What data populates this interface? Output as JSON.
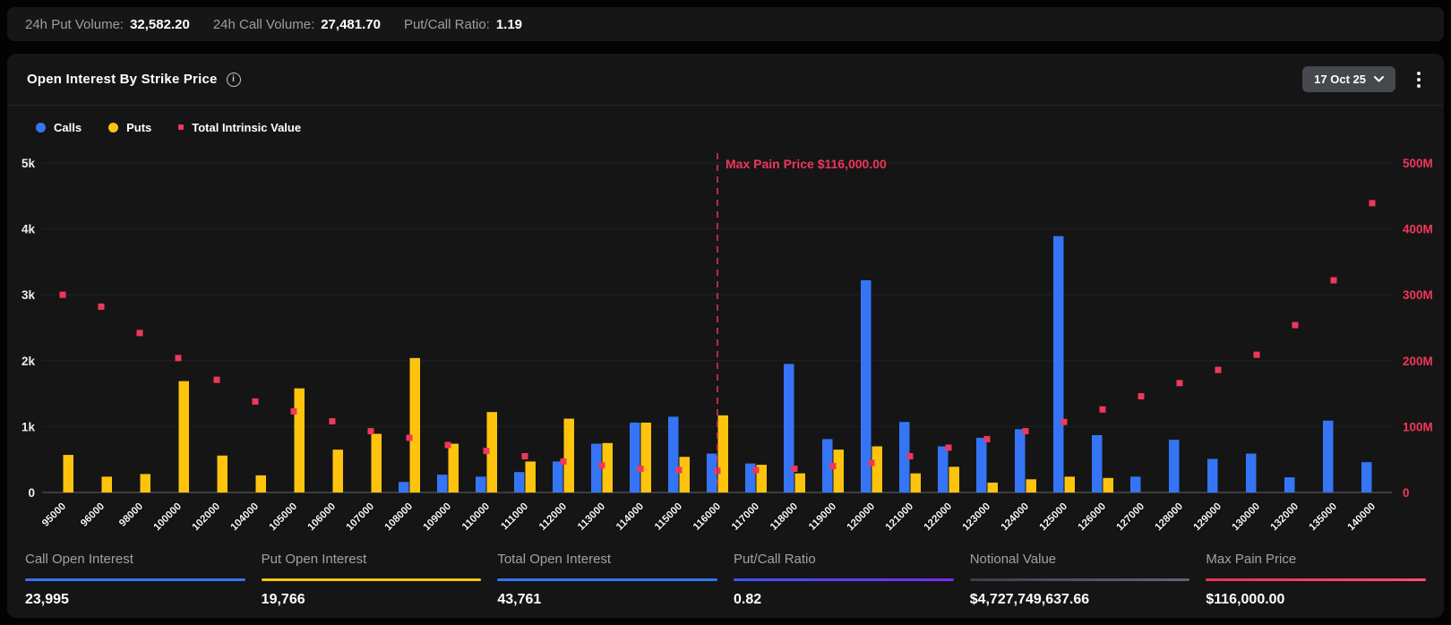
{
  "colors": {
    "calls_blue": "#3575F5",
    "puts_yellow": "#FEC40D",
    "intrinsic_red": "#F0375C",
    "max_pain_line": "#C92D52",
    "max_pain_label": "#F0355C",
    "grid_line": "#212121",
    "axis_line": "#3c3c3c",
    "left_tick": "#ececec",
    "right_tick": "#F0375C",
    "x_tick": "#f5f5f5"
  },
  "top_bar": {
    "items": [
      {
        "label": "24h Put Volume:",
        "value": "32,582.20"
      },
      {
        "label": "24h Call Volume:",
        "value": "27,481.70"
      },
      {
        "label": "Put/Call Ratio:",
        "value": "1.19"
      }
    ]
  },
  "panel": {
    "title": "Open Interest By Strike Price",
    "info_glyph": "i",
    "date_selector": "17 Oct 25"
  },
  "legend": {
    "items": [
      {
        "label": "Calls",
        "shape": "circle",
        "color": "#3575F5"
      },
      {
        "label": "Puts",
        "shape": "circle",
        "color": "#FEC40D"
      },
      {
        "label": "Total Intrinsic Value",
        "shape": "square",
        "color": "#F0375C"
      }
    ]
  },
  "chart_data": {
    "type": "bar",
    "title": "Open Interest By Strike Price",
    "xlabel": "Strike Price",
    "legend_position": "top-left",
    "grid": true,
    "categories": [
      "95000",
      "96000",
      "98000",
      "100000",
      "102000",
      "104000",
      "105000",
      "106000",
      "107000",
      "108000",
      "109000",
      "110000",
      "111000",
      "112000",
      "113000",
      "114000",
      "115000",
      "116000",
      "117000",
      "118000",
      "119000",
      "120000",
      "121000",
      "122000",
      "123000",
      "124000",
      "125000",
      "126000",
      "127000",
      "128000",
      "129000",
      "130000",
      "132000",
      "135000",
      "140000"
    ],
    "series": [
      {
        "name": "Calls",
        "type": "bar",
        "axis": "left",
        "values": [
          0,
          0,
          0,
          0,
          0,
          0,
          0,
          0,
          0,
          160,
          270,
          240,
          310,
          470,
          740,
          1060,
          1150,
          590,
          440,
          1950,
          810,
          3220,
          1070,
          700,
          830,
          960,
          3890,
          870,
          240,
          800,
          510,
          590,
          230,
          1090,
          460
        ]
      },
      {
        "name": "Puts",
        "type": "bar",
        "axis": "left",
        "values": [
          570,
          240,
          280,
          1690,
          560,
          260,
          1580,
          650,
          890,
          2040,
          740,
          1220,
          470,
          1120,
          750,
          1060,
          540,
          1170,
          420,
          290,
          650,
          700,
          290,
          390,
          150,
          200,
          240,
          220,
          0,
          0,
          0,
          0,
          0,
          0,
          0
        ]
      },
      {
        "name": "Total Intrinsic Value",
        "type": "scatter",
        "axis": "right",
        "unit": "M",
        "values": [
          300,
          282,
          242,
          204,
          171,
          138,
          123,
          108,
          93,
          83,
          72,
          63,
          55,
          47,
          41,
          36,
          34,
          33,
          34,
          36,
          40,
          45,
          55,
          68,
          81,
          93,
          107,
          126,
          146,
          166,
          186,
          209,
          254,
          322,
          439
        ]
      }
    ],
    "y_left": {
      "min": 0,
      "max": 5000,
      "ticks": [
        "0",
        "1k",
        "2k",
        "3k",
        "4k",
        "5k"
      ]
    },
    "y_right": {
      "min": 0,
      "max_m": 500,
      "ticks": [
        "0",
        "100M",
        "200M",
        "300M",
        "400M",
        "500M"
      ]
    },
    "max_pain": {
      "category": "116000",
      "label": "Max Pain Price $116,000.00"
    }
  },
  "stats": {
    "items": [
      {
        "label": "Call Open Interest",
        "value": "23,995",
        "rule_colors": [
          "#3575F5"
        ]
      },
      {
        "label": "Put Open Interest",
        "value": "19,766",
        "rule_colors": [
          "#FEC40D"
        ]
      },
      {
        "label": "Total Open Interest",
        "value": "43,761",
        "rule_colors": [
          "#3575F5"
        ]
      },
      {
        "label": "Put/Call Ratio",
        "value": "0.82",
        "rule_colors": [
          "#3E55F0",
          "#7B2BF0"
        ]
      },
      {
        "label": "Notional Value",
        "value": "$4,727,749,637.66",
        "rule_colors": [
          "#3A3F49",
          "#5E6673"
        ]
      },
      {
        "label": "Max Pain Price",
        "value": "$116,000.00",
        "rule_colors": [
          "#E93158",
          "#FB4E74"
        ]
      }
    ]
  }
}
